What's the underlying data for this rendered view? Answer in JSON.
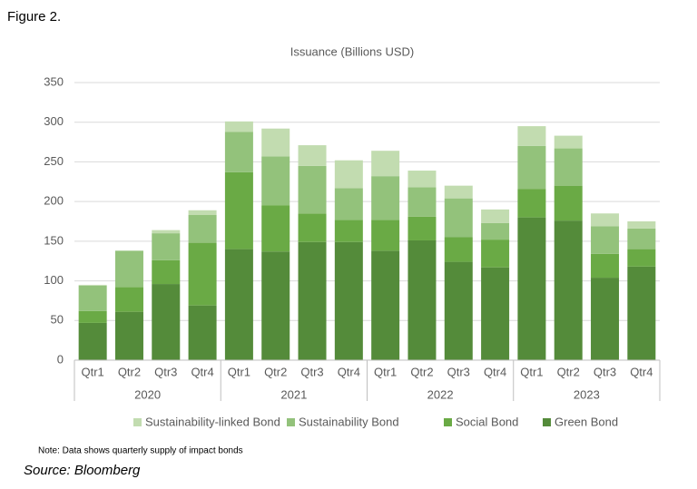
{
  "figure_label": "Figure 2.",
  "chart_data": {
    "type": "stacked-bar",
    "title": "Issuance (Billions USD)",
    "categories": [
      "Qtr1",
      "Qtr2",
      "Qtr3",
      "Qtr4",
      "Qtr1",
      "Qtr2",
      "Qtr3",
      "Qtr4",
      "Qtr1",
      "Qtr2",
      "Qtr3",
      "Qtr4",
      "Qtr1",
      "Qtr2",
      "Qtr3",
      "Qtr4"
    ],
    "groups": [
      "2020",
      "2021",
      "2022",
      "2023"
    ],
    "series": [
      {
        "name": "Green Bond",
        "color": "#548b3a",
        "values": [
          47,
          61,
          96,
          69,
          140,
          137,
          149,
          149,
          138,
          151,
          124,
          117,
          180,
          176,
          104,
          118
        ]
      },
      {
        "name": "Social Bond",
        "color": "#6aaa45",
        "values": [
          15,
          31,
          30,
          79,
          97,
          58,
          36,
          28,
          39,
          30,
          31,
          35,
          36,
          44,
          30,
          22
        ]
      },
      {
        "name": "Sustainability Bond",
        "color": "#93c27b",
        "values": [
          32,
          46,
          34,
          35,
          51,
          62,
          60,
          40,
          55,
          37,
          49,
          21,
          54,
          47,
          35,
          26
        ]
      },
      {
        "name": "Sustainability-linked Bond",
        "color": "#c2dcb0",
        "values": [
          1,
          0,
          4,
          6,
          13,
          35,
          26,
          35,
          32,
          21,
          16,
          17,
          25,
          16,
          16,
          9
        ]
      }
    ],
    "ylim": [
      0,
      350
    ],
    "yticks": [
      0,
      50,
      100,
      150,
      200,
      250,
      300,
      350
    ],
    "grid": true,
    "note": "Note: Data shows quarterly supply of impact bonds"
  },
  "source": "Source: Bloomberg"
}
